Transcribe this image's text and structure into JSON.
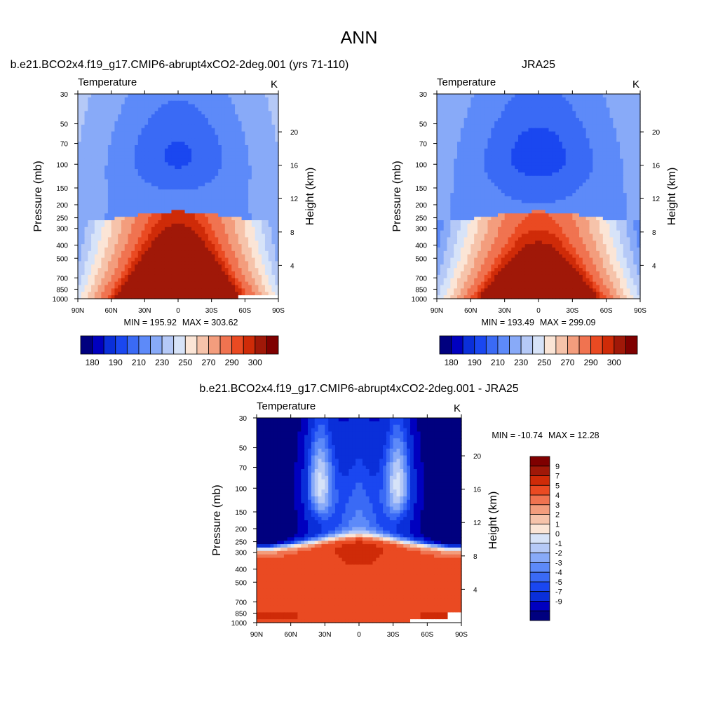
{
  "main_title": "ANN",
  "chart_data": [
    {
      "type": "heatmap",
      "panel_title": "b.e21.BCO2x4.f19_g17.CMIP6-abrupt4xCO2-2deg.001 (yrs 71-110)",
      "variable": "Temperature",
      "units": "K",
      "xlabel": "",
      "ylabel": "Pressure (mb)",
      "ylabel_right": "Height (km)",
      "x_ticks": [
        "90N",
        "60N",
        "30N",
        "0",
        "30S",
        "60S",
        "90S"
      ],
      "y_ticks": [
        "30",
        "50",
        "70",
        "100",
        "150",
        "200",
        "250",
        "300",
        "400",
        "500",
        "700",
        "850",
        "1000"
      ],
      "y_ticks_right": [
        "20",
        "16",
        "12",
        "8",
        "4"
      ],
      "min_label": "MIN = 195.92",
      "max_label": "MAX = 303.62",
      "min": 195.92,
      "max": 303.62,
      "levels": [
        180,
        185,
        190,
        200,
        210,
        220,
        230,
        240,
        250,
        260,
        270,
        280,
        290,
        295,
        300
      ],
      "colorbar_labels": [
        "180",
        "190",
        "210",
        "230",
        "250",
        "270",
        "290",
        "300"
      ]
    },
    {
      "type": "heatmap",
      "panel_title": "JRA25",
      "variable": "Temperature",
      "units": "K",
      "xlabel": "",
      "ylabel": "Pressure (mb)",
      "ylabel_right": "Height (km)",
      "x_ticks": [
        "90N",
        "60N",
        "30N",
        "0",
        "30S",
        "60S",
        "90S"
      ],
      "y_ticks": [
        "30",
        "50",
        "70",
        "100",
        "150",
        "200",
        "250",
        "300",
        "400",
        "500",
        "700",
        "850",
        "1000"
      ],
      "y_ticks_right": [
        "20",
        "16",
        "12",
        "8",
        "4"
      ],
      "min_label": "MIN = 193.49",
      "max_label": "MAX = 299.09",
      "min": 193.49,
      "max": 299.09,
      "levels": [
        180,
        185,
        190,
        200,
        210,
        220,
        230,
        240,
        250,
        260,
        270,
        280,
        290,
        295,
        300
      ],
      "colorbar_labels": [
        "180",
        "190",
        "210",
        "230",
        "250",
        "270",
        "290",
        "300"
      ]
    },
    {
      "type": "heatmap",
      "panel_title": "b.e21.BCO2x4.f19_g17.CMIP6-abrupt4xCO2-2deg.001 - JRA25",
      "variable": "Temperature",
      "units": "K",
      "xlabel": "",
      "ylabel": "Pressure (mb)",
      "ylabel_right": "Height (km)",
      "x_ticks": [
        "90N",
        "60N",
        "30N",
        "0",
        "30S",
        "60S",
        "90S"
      ],
      "y_ticks": [
        "30",
        "50",
        "70",
        "100",
        "150",
        "200",
        "250",
        "300",
        "400",
        "500",
        "700",
        "850",
        "1000"
      ],
      "y_ticks_right": [
        "20",
        "16",
        "12",
        "8",
        "4"
      ],
      "min_label": "MIN = -10.74",
      "max_label": "MAX =  12.28",
      "min": -10.74,
      "max": 12.28,
      "levels": [
        -9,
        -7,
        -5,
        -4,
        -3,
        -2,
        -1,
        0,
        1,
        2,
        3,
        4,
        5,
        7,
        9
      ],
      "colorbar_labels": [
        "9",
        "7",
        "5",
        "4",
        "3",
        "2",
        "1",
        "0",
        "-1",
        "-2",
        "-3",
        "-4",
        "-5",
        "-7",
        "-9"
      ]
    }
  ],
  "palette": [
    "#00007f",
    "#0000bf",
    "#0a2fd9",
    "#1a47f0",
    "#3a6af5",
    "#5d8af9",
    "#88aaf8",
    "#b5c9f7",
    "#d7e3f8",
    "#fbe5d6",
    "#f6c3aa",
    "#f39d7d",
    "#f07350",
    "#ea4a22",
    "#cf2b08",
    "#a01808",
    "#7f0000"
  ]
}
